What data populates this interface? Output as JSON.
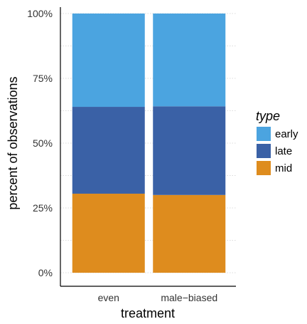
{
  "chart_data": {
    "type": "bar",
    "stacked": true,
    "categories": [
      "even",
      "male−biased"
    ],
    "series": [
      {
        "name": "mid",
        "color": "#DE8C1E",
        "values": [
          30.5,
          30.0
        ]
      },
      {
        "name": "late",
        "color": "#3A61A6",
        "values": [
          33.5,
          34.2
        ]
      },
      {
        "name": "early",
        "color": "#4BA4E0",
        "values": [
          36.0,
          35.8
        ]
      }
    ],
    "xlabel": "treatment",
    "ylabel": "percent of observations",
    "ylim": [
      0,
      100
    ],
    "yticks": [
      "0%",
      "25%",
      "50%",
      "75%",
      "100%"
    ],
    "grid": "horizontal dotted",
    "legend": {
      "title": "type",
      "position": "right",
      "entries": [
        "early",
        "late",
        "mid"
      ]
    }
  }
}
